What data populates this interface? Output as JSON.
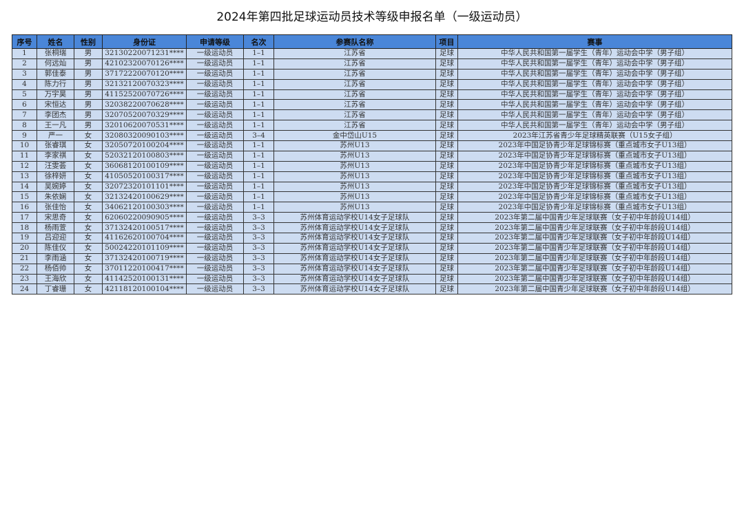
{
  "title": "2024年第四批足球运动员技术等级申报名单（一级运动员）",
  "headers": [
    "序号",
    "姓名",
    "性别",
    "身份证",
    "申请等级",
    "名次",
    "参赛队名称",
    "项目",
    "赛事"
  ],
  "rows": [
    [
      "1",
      "张桐瑞",
      "男",
      "32130220071231****",
      "一级运动员",
      "1–1",
      "江苏省",
      "足球",
      "中华人民共和国第一届学生（青年）运动会中学（男子组）"
    ],
    [
      "2",
      "何远灿",
      "男",
      "42102320070126****",
      "一级运动员",
      "1–1",
      "江苏省",
      "足球",
      "中华人民共和国第一届学生（青年）运动会中学（男子组）"
    ],
    [
      "3",
      "郭佳泰",
      "男",
      "37172220070120****",
      "一级运动员",
      "1–1",
      "江苏省",
      "足球",
      "中华人民共和国第一届学生（青年）运动会中学（男子组）"
    ],
    [
      "4",
      "陈力行",
      "男",
      "32132120070323****",
      "一级运动员",
      "1–1",
      "江苏省",
      "足球",
      "中华人民共和国第一届学生（青年）运动会中学（男子组）"
    ],
    [
      "5",
      "万宇昊",
      "男",
      "41152520070726****",
      "一级运动员",
      "1–1",
      "江苏省",
      "足球",
      "中华人民共和国第一届学生（青年）运动会中学（男子组）"
    ],
    [
      "6",
      "宋恒达",
      "男",
      "32038220070628****",
      "一级运动员",
      "1–1",
      "江苏省",
      "足球",
      "中华人民共和国第一届学生（青年）运动会中学（男子组）"
    ],
    [
      "7",
      "李团杰",
      "男",
      "32070520070329****",
      "一级运动员",
      "1–1",
      "江苏省",
      "足球",
      "中华人民共和国第一届学生（青年）运动会中学（男子组）"
    ],
    [
      "8",
      "王一凡",
      "男",
      "32010620070531****",
      "一级运动员",
      "1–1",
      "江苏省",
      "足球",
      "中华人民共和国第一届学生（青年）运动会中学（男子组）"
    ],
    [
      "9",
      "严一",
      "女",
      "32080320090103****",
      "一级运动员",
      "3–4",
      "金中岱山U15",
      "足球",
      "2023年江苏省青少年足球精英联赛（U15女子组）"
    ],
    [
      "10",
      "张睿琪",
      "女",
      "32050720100204****",
      "一级运动员",
      "1–1",
      "苏州U13",
      "足球",
      "2023年中国足协青少年足球锦标赛（重点城市女子U13组）"
    ],
    [
      "11",
      "李家祺",
      "女",
      "52032120100803****",
      "一级运动员",
      "1–1",
      "苏州U13",
      "足球",
      "2023年中国足协青少年足球锦标赛（重点城市女子U13组）"
    ],
    [
      "12",
      "汪雯荟",
      "女",
      "36068120100109****",
      "一级运动员",
      "1–1",
      "苏州U13",
      "足球",
      "2023年中国足协青少年足球锦标赛（重点城市女子U13组）"
    ],
    [
      "13",
      "徐梓妍",
      "女",
      "41050520100317****",
      "一级运动员",
      "1–1",
      "苏州U13",
      "足球",
      "2023年中国足协青少年足球锦标赛（重点城市女子U13组）"
    ],
    [
      "14",
      "吴婉婷",
      "女",
      "32072320101101****",
      "一级运动员",
      "1–1",
      "苏州U13",
      "足球",
      "2023年中国足协青少年足球锦标赛（重点城市女子U13组）"
    ],
    [
      "15",
      "朱依娴",
      "女",
      "32132420100629****",
      "一级运动员",
      "1–1",
      "苏州U13",
      "足球",
      "2023年中国足协青少年足球锦标赛（重点城市女子U13组）"
    ],
    [
      "16",
      "张佳怡",
      "女",
      "34062120100303****",
      "一级运动员",
      "1–1",
      "苏州U13",
      "足球",
      "2023年中国足协青少年足球锦标赛（重点城市女子U13组）"
    ],
    [
      "17",
      "宋思奇",
      "女",
      "62060220090905****",
      "一级运动员",
      "3–3",
      "苏州体育运动学校U14女子足球队",
      "足球",
      "2023年第二届中国青少年足球联赛（女子初中年龄段U14组）"
    ],
    [
      "18",
      "杨雨萱",
      "女",
      "37132420100517****",
      "一级运动员",
      "3–3",
      "苏州体育运动学校U14女子足球队",
      "足球",
      "2023年第二届中国青少年足球联赛（女子初中年龄段U14组）"
    ],
    [
      "19",
      "吕迎迎",
      "女",
      "41162620100704****",
      "一级运动员",
      "3–3",
      "苏州体育运动学校U14女子足球队",
      "足球",
      "2023年第二届中国青少年足球联赛（女子初中年龄段U14组）"
    ],
    [
      "20",
      "陈佳仪",
      "女",
      "50024220101109****",
      "一级运动员",
      "3–3",
      "苏州体育运动学校U14女子足球队",
      "足球",
      "2023年第二届中国青少年足球联赛（女子初中年龄段U14组）"
    ],
    [
      "21",
      "李雨涵",
      "女",
      "37132420100719****",
      "一级运动员",
      "3–3",
      "苏州体育运动学校U14女子足球队",
      "足球",
      "2023年第二届中国青少年足球联赛（女子初中年龄段U14组）"
    ],
    [
      "22",
      "杨佰帅",
      "女",
      "37011220100417****",
      "一级运动员",
      "3–3",
      "苏州体育运动学校U14女子足球队",
      "足球",
      "2023年第二届中国青少年足球联赛（女子初中年龄段U14组）"
    ],
    [
      "23",
      "王海欣",
      "女",
      "41142520100131****",
      "一级运动员",
      "3–3",
      "苏州体育运动学校U14女子足球队",
      "足球",
      "2023年第二届中国青少年足球联赛（女子初中年龄段U14组）"
    ],
    [
      "24",
      "丁睿珊",
      "女",
      "42118120100104****",
      "一级运动员",
      "3–3",
      "苏州体育运动学校U14女子足球队",
      "足球",
      "2023年第二届中国青少年足球联赛（女子初中年龄段U14组）"
    ]
  ]
}
